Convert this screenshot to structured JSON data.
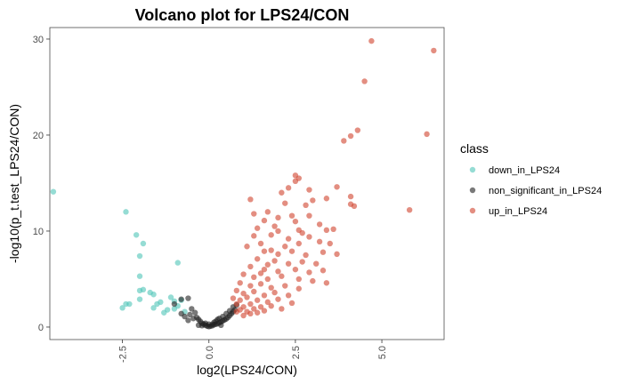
{
  "chart_data": {
    "type": "scatter",
    "title": "Volcano plot for LPS24/CON",
    "xlabel": "log2(LPS24/CON)",
    "ylabel": "-log10(p_t.test_LPS24/CON)",
    "xlim": [
      -4.6,
      6.8
    ],
    "ylim": [
      -1.3,
      31.2
    ],
    "x_ticks": [
      -2.5,
      0.0,
      2.5,
      5.0
    ],
    "x_tick_labels": [
      "-2.5",
      "0.0",
      "2.5",
      "5.0"
    ],
    "y_ticks": [
      0,
      10,
      20,
      30
    ],
    "y_tick_labels": [
      "0",
      "10",
      "20",
      "30"
    ],
    "grid": false,
    "legend": {
      "title": "class",
      "placement": "right"
    },
    "series": [
      {
        "name": "down_in_LPS24",
        "color": "#4fc4b8",
        "points": [
          [
            -4.5,
            14.1
          ],
          [
            -2.4,
            12.0
          ],
          [
            -2.1,
            9.6
          ],
          [
            -1.9,
            8.7
          ],
          [
            -2.0,
            7.4
          ],
          [
            -0.9,
            6.7
          ],
          [
            -2.0,
            5.3
          ],
          [
            -2.0,
            3.8
          ],
          [
            -1.9,
            3.9
          ],
          [
            -1.6,
            3.4
          ],
          [
            -1.7,
            3.6
          ],
          [
            -1.1,
            3.1
          ],
          [
            -1.0,
            2.7
          ],
          [
            -0.8,
            2.8
          ],
          [
            -2.4,
            2.4
          ],
          [
            -2.3,
            2.4
          ],
          [
            -1.5,
            2.4
          ],
          [
            -0.9,
            2.2
          ],
          [
            -2.5,
            2.0
          ],
          [
            -1.6,
            2.0
          ],
          [
            -1.2,
            1.8
          ],
          [
            -1.0,
            1.9
          ],
          [
            -0.7,
            1.6
          ],
          [
            -1.3,
            1.5
          ],
          [
            -2.0,
            2.9
          ],
          [
            -1.4,
            2.6
          ]
        ]
      },
      {
        "name": "non_significant_in_LPS24",
        "color": "#1f1f1f",
        "points": [
          [
            -1.0,
            2.4
          ],
          [
            -0.8,
            2.9
          ],
          [
            -0.6,
            3.0
          ],
          [
            -0.5,
            1.9
          ],
          [
            -0.4,
            1.5
          ],
          [
            -0.35,
            1.0
          ],
          [
            -0.3,
            0.8
          ],
          [
            -0.25,
            0.6
          ],
          [
            -0.2,
            0.4
          ],
          [
            -0.15,
            0.3
          ],
          [
            -0.1,
            0.2
          ],
          [
            -0.05,
            0.1
          ],
          [
            0.0,
            0.05
          ],
          [
            0.05,
            0.1
          ],
          [
            0.1,
            0.15
          ],
          [
            0.15,
            0.25
          ],
          [
            0.2,
            0.3
          ],
          [
            0.25,
            0.35
          ],
          [
            0.3,
            0.45
          ],
          [
            0.35,
            0.55
          ],
          [
            0.4,
            0.65
          ],
          [
            0.45,
            0.75
          ],
          [
            0.5,
            0.85
          ],
          [
            0.55,
            1.0
          ],
          [
            0.6,
            1.2
          ],
          [
            0.65,
            1.4
          ],
          [
            0.7,
            1.6
          ],
          [
            0.75,
            1.8
          ],
          [
            -0.55,
            1.3
          ],
          [
            -0.45,
            0.9
          ],
          [
            -0.6,
            0.7
          ],
          [
            -0.2,
            0.15
          ],
          [
            0.1,
            0.3
          ],
          [
            0.2,
            0.6
          ],
          [
            0.3,
            0.9
          ],
          [
            0.4,
            1.1
          ],
          [
            0.5,
            1.4
          ],
          [
            0.6,
            1.7
          ],
          [
            0.7,
            2.1
          ],
          [
            -0.7,
            1.1
          ],
          [
            -0.8,
            1.4
          ],
          [
            0.8,
            2.3
          ],
          [
            0.15,
            0.5
          ],
          [
            -0.1,
            0.4
          ],
          [
            0.35,
            0.2
          ],
          [
            -0.3,
            0.2
          ],
          [
            0.0,
            0.3
          ],
          [
            0.25,
            0.8
          ]
        ]
      },
      {
        "name": "up_in_LPS24",
        "color": "#d1422d",
        "points": [
          [
            4.7,
            29.8
          ],
          [
            6.5,
            28.8
          ],
          [
            4.5,
            25.6
          ],
          [
            3.9,
            19.4
          ],
          [
            4.1,
            19.9
          ],
          [
            4.3,
            20.5
          ],
          [
            6.3,
            20.1
          ],
          [
            2.5,
            15.8
          ],
          [
            2.6,
            15.5
          ],
          [
            2.5,
            15.2
          ],
          [
            3.7,
            14.6
          ],
          [
            2.3,
            14.5
          ],
          [
            4.1,
            13.6
          ],
          [
            2.1,
            14.0
          ],
          [
            2.9,
            14.3
          ],
          [
            3.4,
            13.4
          ],
          [
            3.0,
            13.2
          ],
          [
            2.8,
            12.7
          ],
          [
            4.2,
            12.6
          ],
          [
            4.1,
            12.8
          ],
          [
            5.8,
            12.2
          ],
          [
            1.2,
            13.3
          ],
          [
            1.7,
            12.0
          ],
          [
            2.0,
            11.4
          ],
          [
            2.5,
            11.0
          ],
          [
            2.4,
            11.6
          ],
          [
            1.6,
            11.1
          ],
          [
            1.9,
            10.5
          ],
          [
            1.4,
            10.3
          ],
          [
            2.6,
            10.1
          ],
          [
            3.2,
            10.7
          ],
          [
            3.4,
            10.1
          ],
          [
            1.8,
            9.6
          ],
          [
            2.3,
            9.2
          ],
          [
            2.9,
            9.4
          ],
          [
            1.3,
            9.5
          ],
          [
            1.5,
            8.7
          ],
          [
            2.2,
            8.4
          ],
          [
            2.6,
            8.7
          ],
          [
            3.2,
            8.9
          ],
          [
            3.5,
            8.7
          ],
          [
            1.1,
            8.4
          ],
          [
            1.6,
            7.9
          ],
          [
            2.0,
            7.6
          ],
          [
            2.4,
            7.9
          ],
          [
            2.8,
            7.5
          ],
          [
            3.3,
            7.8
          ],
          [
            3.7,
            7.6
          ],
          [
            1.4,
            7.1
          ],
          [
            1.9,
            6.9
          ],
          [
            2.3,
            6.6
          ],
          [
            2.7,
            6.8
          ],
          [
            3.1,
            6.6
          ],
          [
            1.2,
            6.3
          ],
          [
            1.6,
            6.0
          ],
          [
            2.0,
            5.8
          ],
          [
            2.5,
            6.0
          ],
          [
            2.9,
            5.7
          ],
          [
            3.3,
            5.9
          ],
          [
            1.0,
            5.5
          ],
          [
            1.3,
            5.2
          ],
          [
            1.7,
            5.0
          ],
          [
            2.1,
            5.3
          ],
          [
            2.6,
            5.0
          ],
          [
            3.0,
            4.8
          ],
          [
            0.9,
            4.6
          ],
          [
            1.2,
            4.3
          ],
          [
            1.5,
            4.5
          ],
          [
            1.8,
            4.1
          ],
          [
            2.2,
            4.3
          ],
          [
            2.6,
            4.0
          ],
          [
            3.4,
            4.6
          ],
          [
            0.8,
            3.8
          ],
          [
            1.0,
            3.5
          ],
          [
            1.3,
            3.7
          ],
          [
            1.6,
            3.3
          ],
          [
            1.9,
            3.6
          ],
          [
            2.3,
            3.3
          ],
          [
            0.7,
            3.0
          ],
          [
            0.9,
            2.8
          ],
          [
            1.1,
            3.1
          ],
          [
            1.4,
            2.8
          ],
          [
            1.7,
            2.6
          ],
          [
            2.0,
            2.9
          ],
          [
            0.8,
            2.4
          ],
          [
            1.0,
            2.1
          ],
          [
            1.2,
            2.4
          ],
          [
            1.5,
            2.1
          ],
          [
            1.8,
            2.2
          ],
          [
            0.9,
            1.8
          ],
          [
            1.1,
            1.6
          ],
          [
            1.3,
            1.9
          ],
          [
            1.6,
            1.7
          ],
          [
            0.8,
            1.6
          ],
          [
            1.0,
            1.2
          ],
          [
            1.2,
            1.4
          ],
          [
            1.4,
            1.5
          ],
          [
            2.1,
            1.9
          ],
          [
            2.4,
            2.5
          ],
          [
            1.5,
            5.6
          ],
          [
            2.7,
            9.8
          ],
          [
            1.8,
            8.0
          ],
          [
            1.3,
            11.8
          ],
          [
            2.2,
            12.9
          ],
          [
            2.0,
            10.0
          ],
          [
            1.7,
            6.5
          ],
          [
            2.9,
            11.6
          ],
          [
            3.6,
            10.2
          ]
        ]
      }
    ]
  }
}
